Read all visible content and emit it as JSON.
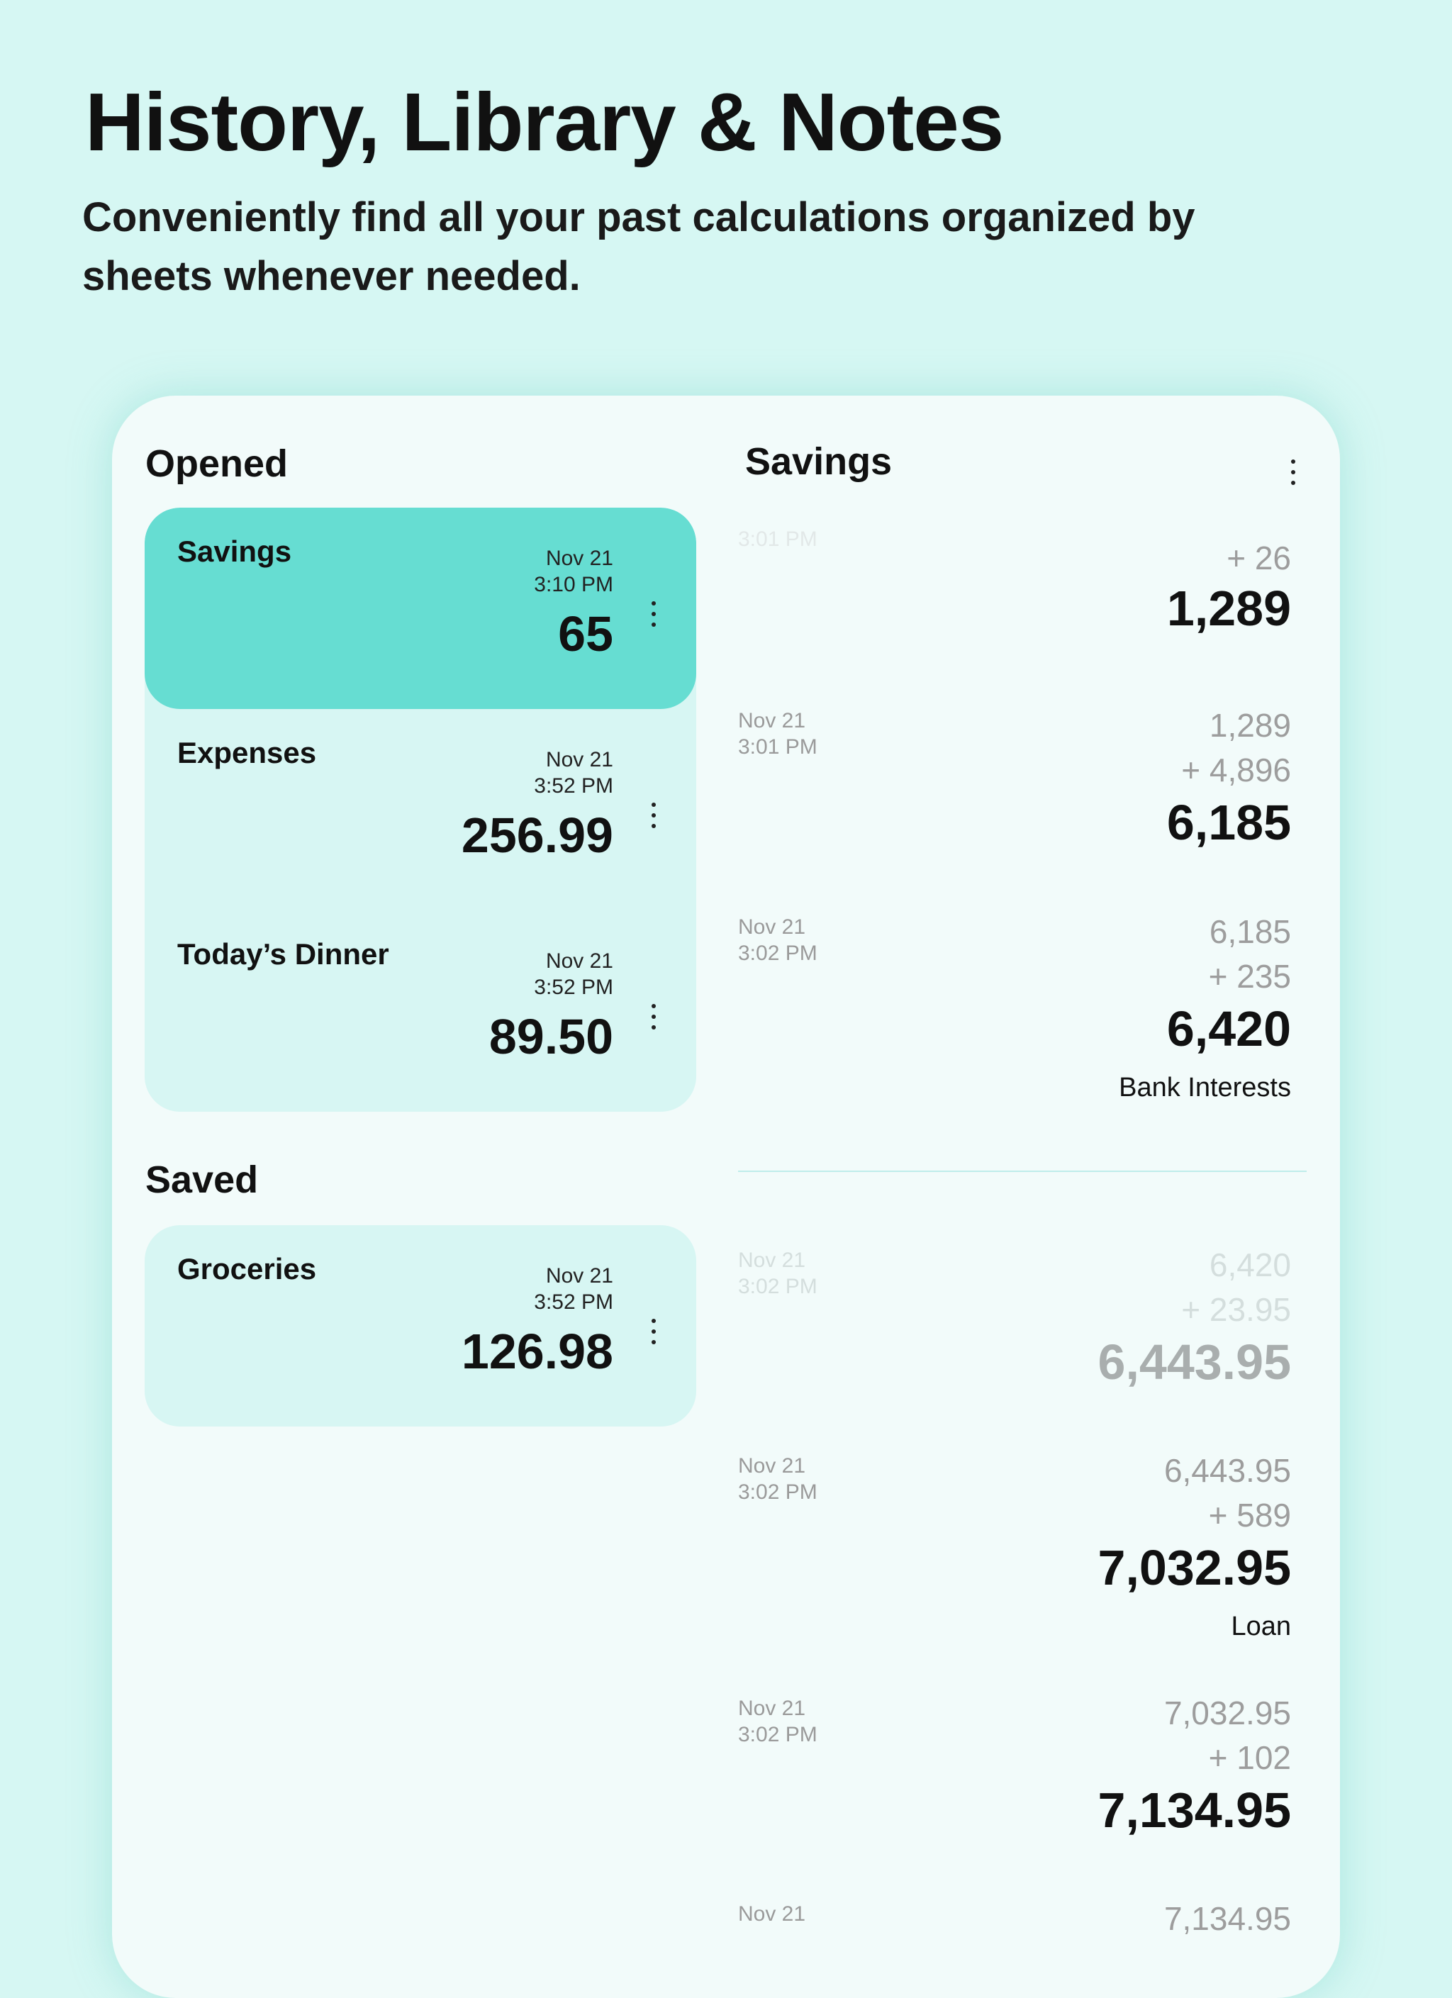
{
  "hero": {
    "title": "History, Library & Notes",
    "subtitle": "Conveniently find all your past calculations organized by sheets whenever needed."
  },
  "sidebar": {
    "opened_title": "Opened",
    "saved_title": "Saved",
    "opened": [
      {
        "name": "Savings",
        "date": "Nov 21",
        "time": "3:10 PM",
        "value": "65",
        "active": true
      },
      {
        "name": "Expenses",
        "date": "Nov 21",
        "time": "3:52 PM",
        "value": "256.99"
      },
      {
        "name": "Today’s Dinner",
        "date": "Nov 21",
        "time": "3:52 PM",
        "value": "89.50"
      }
    ],
    "saved": [
      {
        "name": "Groceries",
        "date": "Nov 21",
        "time": "3:52 PM",
        "value": "126.98"
      }
    ]
  },
  "detail": {
    "title": "Savings",
    "entries": [
      {
        "date": "",
        "time": "3:01 PM",
        "prev": "",
        "add": "+ 26",
        "result": "1,289",
        "note": ""
      },
      {
        "date": "Nov 21",
        "time": "3:01 PM",
        "prev": "1,289",
        "add": "+ 4,896",
        "result": "6,185",
        "note": ""
      },
      {
        "date": "Nov 21",
        "time": "3:02 PM",
        "prev": "6,185",
        "add": "+ 235",
        "result": "6,420",
        "note": "Bank Interests"
      },
      {
        "date": "Nov 21",
        "time": "3:02 PM",
        "prev": "6,420",
        "add": "+ 23.95",
        "result": "6,443.95",
        "note": "",
        "faded": true
      },
      {
        "date": "Nov 21",
        "time": "3:02 PM",
        "prev": "6,443.95",
        "add": "+ 589",
        "result": "7,032.95",
        "note": "Loan"
      },
      {
        "date": "Nov 21",
        "time": "3:02 PM",
        "prev": "7,032.95",
        "add": "+ 102",
        "result": "7,134.95",
        "note": ""
      },
      {
        "date": "Nov 21",
        "time": "",
        "prev": "7,134.95",
        "add": "",
        "result": "",
        "note": ""
      }
    ]
  }
}
